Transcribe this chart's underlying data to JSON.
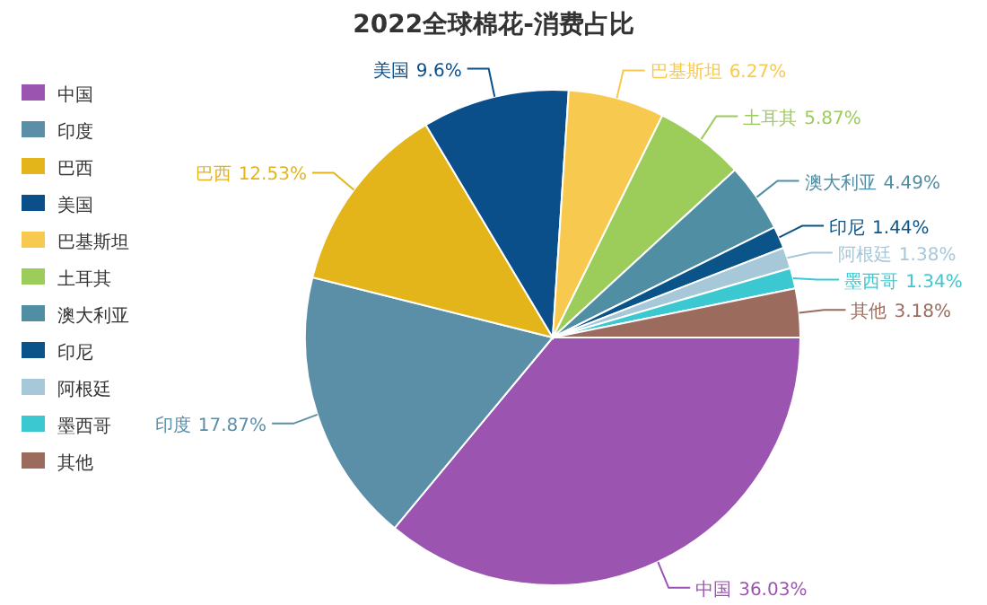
{
  "chart_data": {
    "type": "pie",
    "title": "2022全球棉花-消费占比",
    "categories": [
      "中国",
      "印度",
      "巴西",
      "美国",
      "巴基斯坦",
      "土耳其",
      "澳大利亚",
      "印尼",
      "阿根廷",
      "墨西哥",
      "其他"
    ],
    "values": [
      36.03,
      17.87,
      12.53,
      9.6,
      6.27,
      5.87,
      4.49,
      1.44,
      1.38,
      1.34,
      3.18
    ],
    "colors": [
      "#9b55b0",
      "#5b8fa8",
      "#e3b51a",
      "#0b4f8a",
      "#f7c94f",
      "#9ccc5a",
      "#4f8ea3",
      "#0a5489",
      "#a6c8d8",
      "#3cc8d0",
      "#9b6b5e"
    ],
    "value_labels": [
      "36.03%",
      "17.87%",
      "12.53%",
      "9.6%",
      "6.27%",
      "5.87%",
      "4.49%",
      "1.44%",
      "1.38%",
      "1.34%",
      "3.18%"
    ],
    "legend": "left"
  }
}
